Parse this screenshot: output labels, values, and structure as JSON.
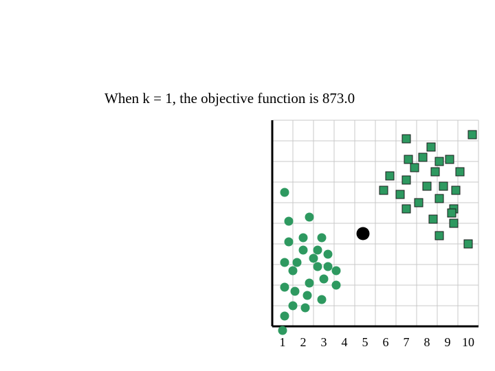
{
  "title": "When k = 1, the objective function is 873.0",
  "chart_data": {
    "type": "scatter",
    "title": "When k = 1, the objective function is 873.0",
    "xlim": [
      0.5,
      10.5
    ],
    "ylim": [
      0.5,
      10.5
    ],
    "grid": true,
    "x_tick_labels": [
      "1",
      "2",
      "3",
      "4",
      "5",
      "6",
      "7",
      "8",
      "9",
      "10"
    ],
    "colors": {
      "points": "#2e9960",
      "centroid": "#000000",
      "grid": "#c8c8c8",
      "axis": "#000000"
    },
    "centroid": {
      "x": 4.9,
      "y": 5.0,
      "shape": "circle",
      "color": "#000000"
    },
    "series": [
      {
        "shape": "circle",
        "points": [
          [
            1.1,
            7.0
          ],
          [
            1.3,
            5.6
          ],
          [
            2.3,
            5.8
          ],
          [
            1.3,
            4.6
          ],
          [
            2.0,
            4.8
          ],
          [
            2.9,
            4.8
          ],
          [
            2.0,
            4.2
          ],
          [
            2.7,
            4.2
          ],
          [
            1.1,
            3.6
          ],
          [
            1.7,
            3.6
          ],
          [
            2.5,
            3.8
          ],
          [
            3.2,
            4.0
          ],
          [
            1.5,
            3.2
          ],
          [
            2.7,
            3.4
          ],
          [
            3.2,
            3.4
          ],
          [
            3.6,
            3.2
          ],
          [
            1.1,
            2.4
          ],
          [
            2.3,
            2.6
          ],
          [
            3.0,
            2.8
          ],
          [
            3.6,
            2.5
          ],
          [
            1.6,
            2.2
          ],
          [
            2.2,
            2.0
          ],
          [
            2.9,
            1.8
          ],
          [
            1.5,
            1.5
          ],
          [
            2.1,
            1.4
          ],
          [
            1.1,
            1.0
          ],
          [
            1.0,
            0.3
          ]
        ]
      },
      {
        "shape": "square",
        "points": [
          [
            7.0,
            9.6
          ],
          [
            8.2,
            9.2
          ],
          [
            10.2,
            9.8
          ],
          [
            7.1,
            8.6
          ],
          [
            7.8,
            8.7
          ],
          [
            8.6,
            8.5
          ],
          [
            9.1,
            8.6
          ],
          [
            7.4,
            8.2
          ],
          [
            8.4,
            8.0
          ],
          [
            9.6,
            8.0
          ],
          [
            6.2,
            7.8
          ],
          [
            7.0,
            7.6
          ],
          [
            8.0,
            7.3
          ],
          [
            8.8,
            7.3
          ],
          [
            9.4,
            7.1
          ],
          [
            5.9,
            7.1
          ],
          [
            6.7,
            6.9
          ],
          [
            8.6,
            6.7
          ],
          [
            9.3,
            6.2
          ],
          [
            7.6,
            6.5
          ],
          [
            7.0,
            6.2
          ],
          [
            9.2,
            6.0
          ],
          [
            8.3,
            5.7
          ],
          [
            9.3,
            5.5
          ],
          [
            8.6,
            4.9
          ],
          [
            10.0,
            4.5
          ]
        ]
      }
    ]
  }
}
